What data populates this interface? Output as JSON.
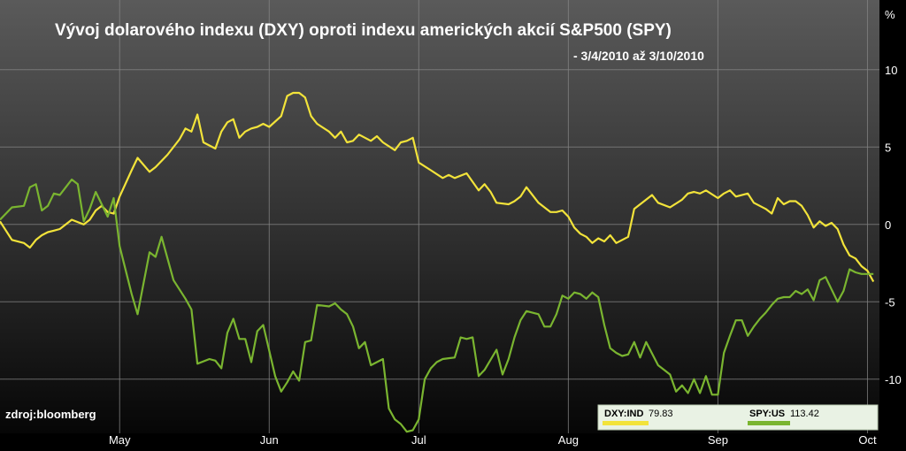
{
  "chart_data": {
    "type": "line",
    "title": "Vývoj dolarového indexu (DXY) oproti indexu amerických akcií S&P500 (SPY)",
    "subtitle": "- 3/4/2010 až 3/10/2010",
    "ylabel": "%",
    "source": "zdroj:bloomberg",
    "ylim": [
      -13.5,
      14.5
    ],
    "yticks": [
      10,
      5,
      0,
      -5,
      -10
    ],
    "ytick_labels": [
      "10",
      "5",
      "0",
      "-5",
      "-10"
    ],
    "x_range": [
      0,
      147
    ],
    "month_ticks": [
      {
        "label": "May",
        "x": 20
      },
      {
        "label": "Jun",
        "x": 45
      },
      {
        "label": "Jul",
        "x": 70
      },
      {
        "label": "Aug",
        "x": 95
      },
      {
        "label": "Sep",
        "x": 120
      },
      {
        "label": "Oct",
        "x": 145
      }
    ],
    "grid": true,
    "legend_position": "bottom-right",
    "series": [
      {
        "name": "DXY:IND",
        "last_value": "79.83",
        "color": "#f2e33a",
        "x": [
          0,
          2,
          4,
          5,
          6,
          7,
          8,
          9,
          10,
          12,
          14,
          15,
          16,
          17,
          18,
          19,
          20,
          22,
          23,
          25,
          26,
          28,
          30,
          31,
          32,
          33,
          34,
          36,
          37,
          38,
          39,
          40,
          41,
          42,
          43,
          44,
          45,
          47,
          48,
          49,
          50,
          51,
          52,
          53,
          55,
          56,
          57,
          58,
          59,
          60,
          62,
          63,
          64,
          66,
          67,
          68,
          69,
          70,
          72,
          74,
          75,
          76,
          78,
          80,
          81,
          82,
          83,
          85,
          86,
          87,
          88,
          90,
          92,
          93,
          94,
          95,
          96,
          97,
          98,
          99,
          100,
          101,
          102,
          103,
          105,
          106,
          108,
          109,
          110,
          112,
          114,
          115,
          116,
          117,
          118,
          120,
          121,
          122,
          123,
          125,
          126,
          128,
          129,
          130,
          131,
          132,
          133,
          134,
          135,
          136,
          137,
          138,
          139,
          140,
          141,
          142,
          143,
          144,
          145,
          146
        ],
        "values": [
          0.2,
          -1.0,
          -1.2,
          -1.5,
          -1.0,
          -0.7,
          -0.5,
          -0.4,
          -0.3,
          0.3,
          0.0,
          0.3,
          0.9,
          1.2,
          0.8,
          0.7,
          1.8,
          3.5,
          4.3,
          3.4,
          3.7,
          4.5,
          5.5,
          6.2,
          6.0,
          7.1,
          5.3,
          4.9,
          6.0,
          6.6,
          6.8,
          5.6,
          6.0,
          6.2,
          6.3,
          6.5,
          6.3,
          7.0,
          8.3,
          8.5,
          8.5,
          8.2,
          7.0,
          6.5,
          6.0,
          5.6,
          6.0,
          5.3,
          5.4,
          5.8,
          5.4,
          5.7,
          5.3,
          4.8,
          5.3,
          5.4,
          5.6,
          4.0,
          3.5,
          3.0,
          3.2,
          3.0,
          3.3,
          2.2,
          2.6,
          2.1,
          1.4,
          1.3,
          1.5,
          1.8,
          2.4,
          1.4,
          0.8,
          0.8,
          0.9,
          0.5,
          -0.2,
          -0.6,
          -0.8,
          -1.2,
          -0.9,
          -1.1,
          -0.7,
          -1.2,
          -0.8,
          1.0,
          1.6,
          1.9,
          1.4,
          1.1,
          1.6,
          2.0,
          2.1,
          2.0,
          2.2,
          1.7,
          2.0,
          2.2,
          1.8,
          2.0,
          1.4,
          1.0,
          0.7,
          1.7,
          1.3,
          1.5,
          1.5,
          1.2,
          0.6,
          -0.2,
          0.2,
          -0.1,
          0.1,
          -0.3,
          -1.3,
          -2.0,
          -2.2,
          -2.7,
          -3.0,
          -3.7
        ]
      },
      {
        "name": "SPY:US",
        "last_value": "113.42",
        "color": "#7ab530",
        "x": [
          0,
          2,
          4,
          5,
          6,
          7,
          8,
          9,
          10,
          11,
          12,
          13,
          14,
          15,
          16,
          18,
          19,
          20,
          22,
          23,
          25,
          26,
          27,
          29,
          31,
          32,
          33,
          35,
          36,
          37,
          38,
          39,
          40,
          41,
          42,
          43,
          44,
          46,
          47,
          48,
          49,
          50,
          51,
          52,
          53,
          55,
          56,
          57,
          58,
          59,
          60,
          61,
          62,
          64,
          65,
          66,
          67,
          68,
          69,
          70,
          71,
          72,
          73,
          74,
          76,
          77,
          78,
          79,
          80,
          81,
          83,
          84,
          85,
          86,
          87,
          88,
          90,
          91,
          92,
          93,
          94,
          95,
          96,
          97,
          98,
          99,
          100,
          101,
          102,
          103,
          104,
          105,
          106,
          107,
          108,
          110,
          111,
          112,
          113,
          114,
          115,
          116,
          117,
          118,
          119,
          120,
          121,
          122,
          123,
          124,
          125,
          126,
          127,
          128,
          129,
          130,
          131,
          132,
          133,
          134,
          135,
          136,
          137,
          138,
          139,
          140,
          141,
          142,
          143,
          144,
          145,
          146
        ],
        "values": [
          0.3,
          1.1,
          1.2,
          2.4,
          2.6,
          0.9,
          1.2,
          2.0,
          1.9,
          2.4,
          2.9,
          2.6,
          0.2,
          1.0,
          2.1,
          0.5,
          1.7,
          -1.4,
          -4.5,
          -5.8,
          -1.8,
          -2.1,
          -0.8,
          -3.6,
          -4.8,
          -5.5,
          -9.0,
          -8.7,
          -8.8,
          -9.3,
          -7.0,
          -6.1,
          -7.4,
          -7.4,
          -8.9,
          -6.9,
          -6.5,
          -9.8,
          -10.8,
          -10.2,
          -9.5,
          -10.1,
          -7.6,
          -7.5,
          -5.2,
          -5.3,
          -5.1,
          -5.5,
          -5.8,
          -6.6,
          -8.0,
          -7.6,
          -9.1,
          -8.7,
          -11.9,
          -12.6,
          -12.9,
          -13.4,
          -13.3,
          -12.6,
          -10.0,
          -9.3,
          -8.9,
          -8.7,
          -8.6,
          -7.3,
          -7.4,
          -7.3,
          -9.8,
          -9.4,
          -8.1,
          -9.7,
          -8.7,
          -7.3,
          -6.2,
          -5.6,
          -5.8,
          -6.6,
          -6.6,
          -5.8,
          -4.6,
          -4.8,
          -4.4,
          -4.5,
          -4.8,
          -4.4,
          -4.7,
          -6.5,
          -8.0,
          -8.3,
          -8.5,
          -8.4,
          -7.6,
          -8.6,
          -7.6,
          -9.1,
          -9.4,
          -9.7,
          -10.8,
          -10.4,
          -10.9,
          -10.0,
          -10.9,
          -9.8,
          -11.0,
          -11.0,
          -8.3,
          -7.2,
          -6.2,
          -6.2,
          -7.2,
          -6.6,
          -6.1,
          -5.7,
          -5.2,
          -4.8,
          -4.7,
          -4.7,
          -4.3,
          -4.5,
          -4.2,
          -4.9,
          -3.6,
          -3.4,
          -4.2,
          -5.0,
          -4.3,
          -2.9,
          -3.1,
          -3.2,
          -3.2,
          -3.2
        ]
      }
    ]
  }
}
